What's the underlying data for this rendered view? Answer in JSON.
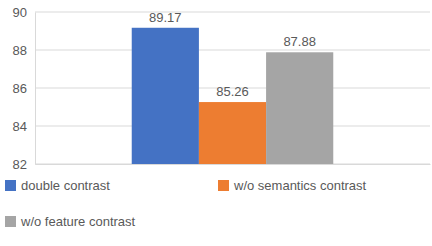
{
  "chart_data": {
    "type": "bar",
    "categories": [
      null
    ],
    "series": [
      {
        "name": "double contrast",
        "color": "#4472c4",
        "values": [
          89.17
        ]
      },
      {
        "name": "w/o semantics contrast",
        "color": "#ed7d31",
        "values": [
          85.26
        ]
      },
      {
        "name": "w/o feature contrast",
        "color": "#a5a5a5",
        "values": [
          87.88
        ]
      }
    ],
    "ylim": [
      82,
      90
    ],
    "yticks": [
      82,
      84,
      86,
      88,
      90
    ],
    "grid": true,
    "data_labels": true,
    "legend": "bottom"
  }
}
